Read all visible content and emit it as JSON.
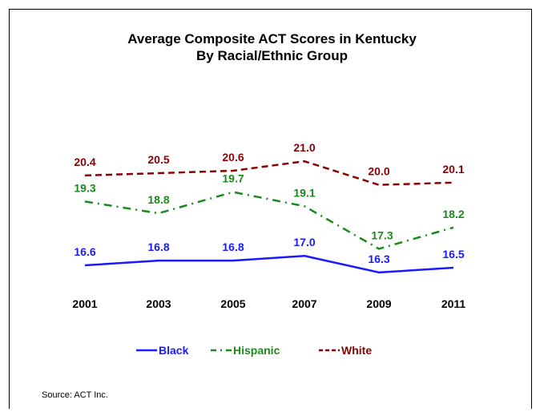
{
  "chart_data": {
    "type": "line",
    "title": "Average Composite ACT Scores in Kentucky",
    "subtitle": "By Racial/Ethnic Group",
    "categories": [
      "2001",
      "2003",
      "2005",
      "2007",
      "2009",
      "2011"
    ],
    "series": [
      {
        "name": "White",
        "values": [
          20.4,
          20.5,
          20.6,
          21.0,
          20.0,
          20.1
        ],
        "color": "#8b0000",
        "style": "dashed"
      },
      {
        "name": "Hispanic",
        "values": [
          19.3,
          18.8,
          19.7,
          19.1,
          17.3,
          18.2
        ],
        "color": "#1a8a1a",
        "style": "dash-dot"
      },
      {
        "name": "Black",
        "values": [
          16.6,
          16.8,
          16.8,
          17.0,
          16.3,
          16.5
        ],
        "color": "#1a1aff",
        "style": "solid"
      }
    ],
    "value_labels": {
      "White": [
        "20.4",
        "20.5",
        "20.6",
        "21.0",
        "20.0",
        "20.1"
      ],
      "Hispanic": [
        "19.3",
        "18.8",
        "19.7",
        "19.1",
        "17.3",
        "18.2"
      ],
      "Black": [
        "16.6",
        "16.8",
        "16.8",
        "17.0",
        "16.3",
        "16.5"
      ]
    },
    "legend": {
      "position": "bottom",
      "order": [
        "Black",
        "Hispanic",
        "White"
      ]
    },
    "grid": false,
    "axes_visible": false
  },
  "source": "Source: ACT Inc."
}
